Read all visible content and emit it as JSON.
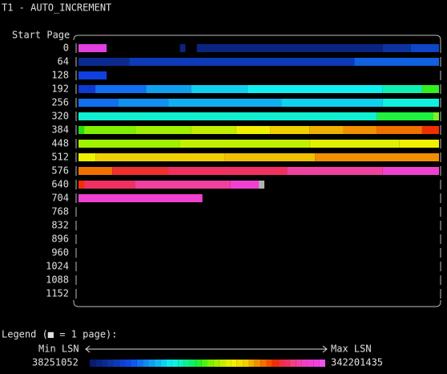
{
  "title": "T1 - AUTO_INCREMENT",
  "axis_label": "Start Page",
  "rows": [
    {
      "label": "0",
      "runs": [
        {
          "color": "#e040e0",
          "pages": 5
        },
        {
          "color": "#000000",
          "pages": 13
        },
        {
          "color": "#0a2480",
          "pages": 1
        },
        {
          "color": "#000000",
          "pages": 2
        },
        {
          "color": "#0a2480",
          "pages": 33
        },
        {
          "color": "#0c33a0",
          "pages": 5
        },
        {
          "color": "#0f45c8",
          "pages": 5
        }
      ]
    },
    {
      "label": "64",
      "runs": [
        {
          "color": "#0a2a90",
          "pages": 9
        },
        {
          "color": "#0c3ab8",
          "pages": 40
        },
        {
          "color": "#1060e0",
          "pages": 15
        }
      ]
    },
    {
      "label": "128",
      "runs": [
        {
          "color": "#1040e0",
          "pages": 5
        }
      ]
    },
    {
      "label": "192",
      "runs": [
        {
          "color": "#0d3ad0",
          "pages": 3
        },
        {
          "color": "#1070f0",
          "pages": 9
        },
        {
          "color": "#10a0f0",
          "pages": 8
        },
        {
          "color": "#10d0f0",
          "pages": 10
        },
        {
          "color": "#10f0f0",
          "pages": 24
        },
        {
          "color": "#10f0b0",
          "pages": 7
        },
        {
          "color": "#30f020",
          "pages": 3
        }
      ]
    },
    {
      "label": "256",
      "runs": [
        {
          "color": "#1070f0",
          "pages": 7
        },
        {
          "color": "#1090f0",
          "pages": 9
        },
        {
          "color": "#10b0f0",
          "pages": 20
        },
        {
          "color": "#10d0f0",
          "pages": 18
        },
        {
          "color": "#10f0e0",
          "pages": 10
        }
      ]
    },
    {
      "label": "320",
      "runs": [
        {
          "color": "#10f0d0",
          "pages": 53
        },
        {
          "color": "#20f040",
          "pages": 10
        },
        {
          "color": "#80f020",
          "pages": 1
        }
      ]
    },
    {
      "label": "384",
      "runs": [
        {
          "color": "#20e010",
          "pages": 1
        },
        {
          "color": "#80f000",
          "pages": 9
        },
        {
          "color": "#a0f000",
          "pages": 10
        },
        {
          "color": "#c0f000",
          "pages": 8
        },
        {
          "color": "#f0f000",
          "pages": 6
        },
        {
          "color": "#f0d000",
          "pages": 7
        },
        {
          "color": "#f0b000",
          "pages": 6
        },
        {
          "color": "#f09000",
          "pages": 6
        },
        {
          "color": "#f07000",
          "pages": 8
        },
        {
          "color": "#f03000",
          "pages": 3
        }
      ]
    },
    {
      "label": "448",
      "runs": [
        {
          "color": "#a0f000",
          "pages": 18
        },
        {
          "color": "#c0f000",
          "pages": 23
        },
        {
          "color": "#e0f000",
          "pages": 16
        },
        {
          "color": "#f0f000",
          "pages": 7
        }
      ]
    },
    {
      "label": "512",
      "runs": [
        {
          "color": "#f0f000",
          "pages": 3
        },
        {
          "color": "#f0d000",
          "pages": 23
        },
        {
          "color": "#f0c000",
          "pages": 16
        },
        {
          "color": "#f09000",
          "pages": 22
        }
      ]
    },
    {
      "label": "576",
      "runs": [
        {
          "color": "#f07000",
          "pages": 6
        },
        {
          "color": "#f03030",
          "pages": 10
        },
        {
          "color": "#f03060",
          "pages": 21
        },
        {
          "color": "#f040a0",
          "pages": 17
        },
        {
          "color": "#f040d0",
          "pages": 10
        }
      ]
    },
    {
      "label": "640",
      "runs": [
        {
          "color": "#f03000",
          "pages": 1
        },
        {
          "color": "#f03060",
          "pages": 9
        },
        {
          "color": "#f040a0",
          "pages": 17
        },
        {
          "color": "#f040d0",
          "pages": 5
        },
        {
          "color": "#b0b0b0",
          "pages": 1
        }
      ]
    },
    {
      "label": "704",
      "runs": [
        {
          "color": "#f040d0",
          "pages": 22
        }
      ]
    },
    {
      "label": "768",
      "runs": []
    },
    {
      "label": "832",
      "runs": []
    },
    {
      "label": "896",
      "runs": []
    },
    {
      "label": "960",
      "runs": []
    },
    {
      "label": "1024",
      "runs": []
    },
    {
      "label": "1088",
      "runs": []
    },
    {
      "label": "1152",
      "runs": []
    }
  ],
  "legend": {
    "label": "Legend (■ = 1 page):",
    "min_label": "Min LSN",
    "max_label": "Max LSN",
    "min_value": "38251052",
    "max_value": "342201435",
    "colors": [
      "#0a1a70",
      "#0a2280",
      "#0a2a90",
      "#0c33a0",
      "#0c3ab8",
      "#0d40d0",
      "#0f48e0",
      "#1058f0",
      "#1070f0",
      "#1088f0",
      "#10a0f0",
      "#10b8f0",
      "#10d0f0",
      "#10e8f0",
      "#10f0e0",
      "#10f0c0",
      "#10f090",
      "#10f060",
      "#20f030",
      "#50f010",
      "#80f000",
      "#a0f000",
      "#c0f000",
      "#e0f000",
      "#f0f000",
      "#f0e000",
      "#f0d000",
      "#f0b000",
      "#f09000",
      "#f07000",
      "#f05000",
      "#f03000",
      "#f03040",
      "#f03060",
      "#f04080",
      "#f040a0",
      "#f040c0",
      "#f040d0",
      "#f040e0",
      "#f050f0"
    ]
  }
}
